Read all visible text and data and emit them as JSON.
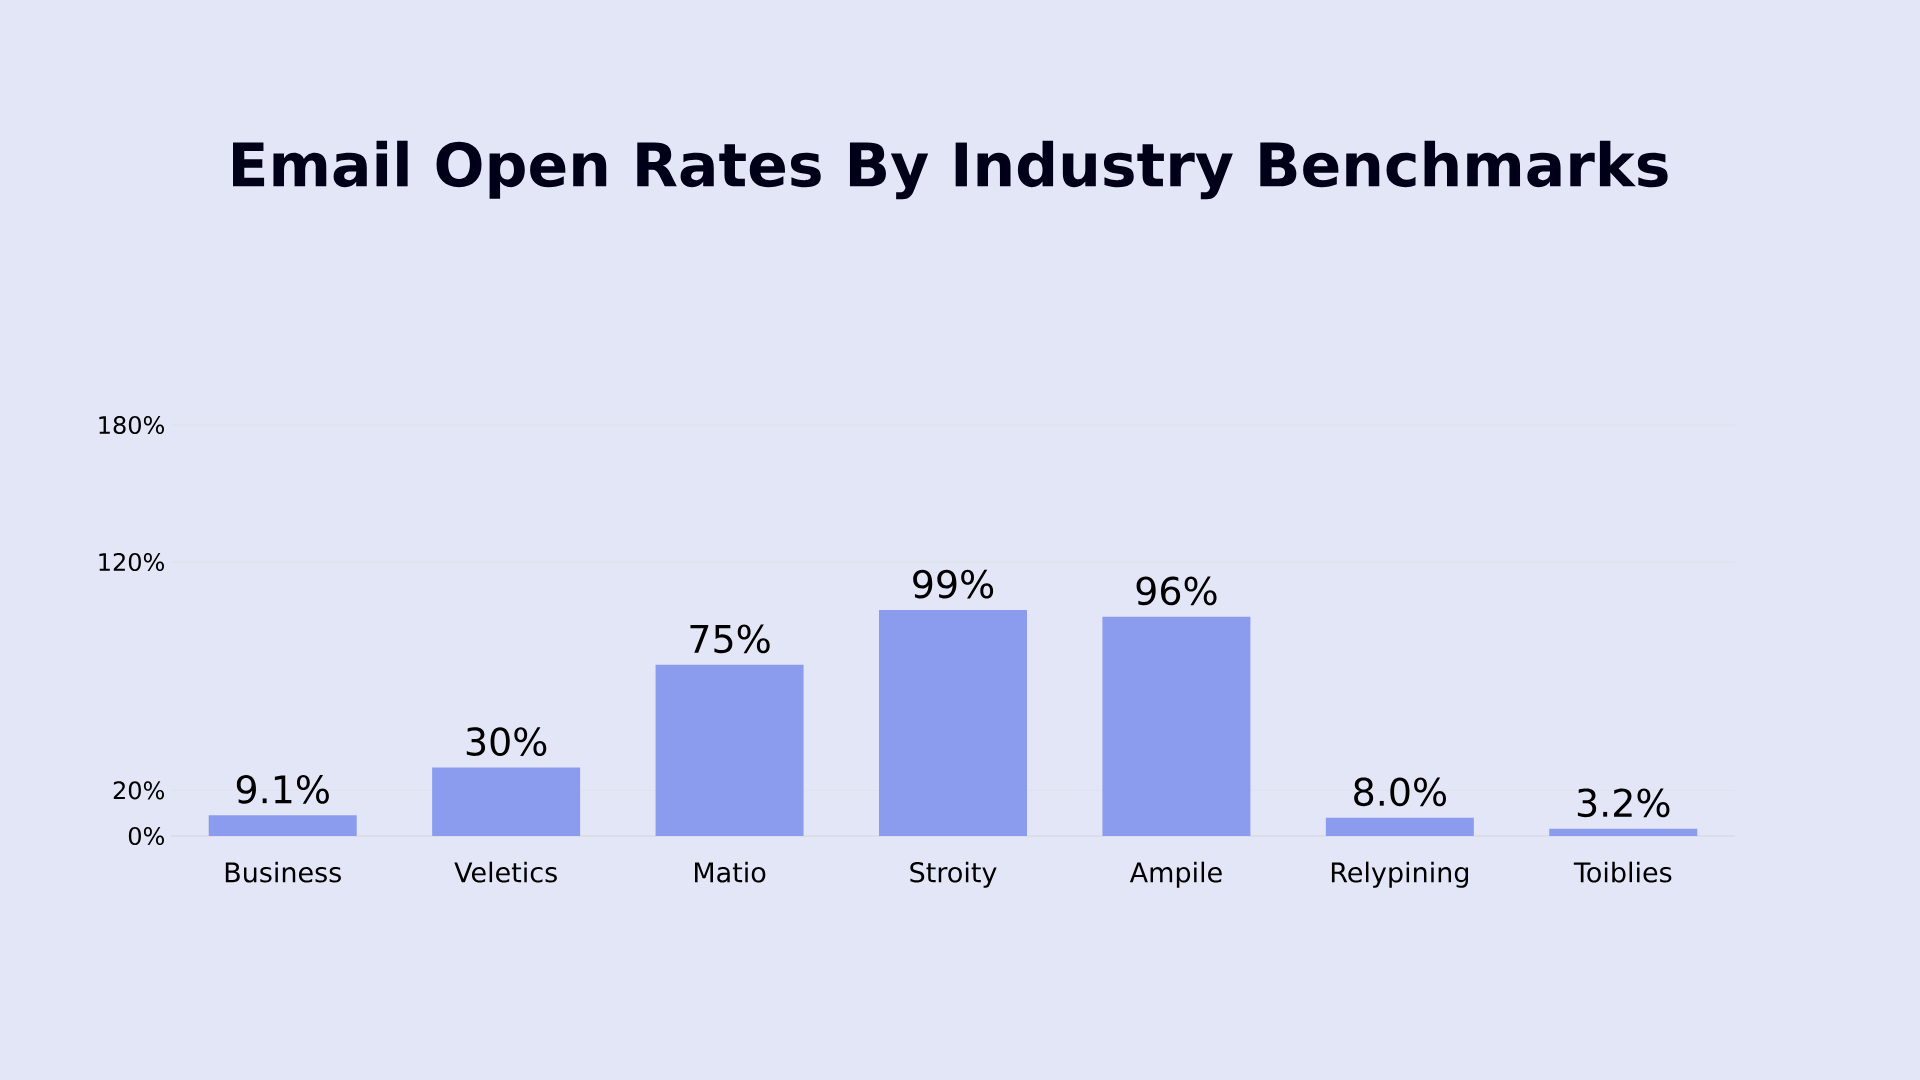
{
  "chart_data": {
    "type": "bar",
    "title": "Email Open Rates By Industry Benchmarks",
    "categories": [
      "Business",
      "Veletics",
      "Matio",
      "Stroity",
      "Ampile",
      "Relypining",
      "Toiblies"
    ],
    "values": [
      9.1,
      30,
      75,
      99,
      96,
      8.0,
      3.2
    ],
    "value_labels": [
      "9.1%",
      "30%",
      "75%",
      "99%",
      "96%",
      "8.0%",
      "3.2%"
    ],
    "color": "#8b9cee",
    "ylim": [
      0,
      180
    ],
    "yticks": [
      {
        "value": 0,
        "label": "0%"
      },
      {
        "value": 20,
        "label": "20%"
      },
      {
        "value": 120,
        "label": "120%"
      },
      {
        "value": 180,
        "label": "180%"
      }
    ],
    "grid": "y"
  }
}
